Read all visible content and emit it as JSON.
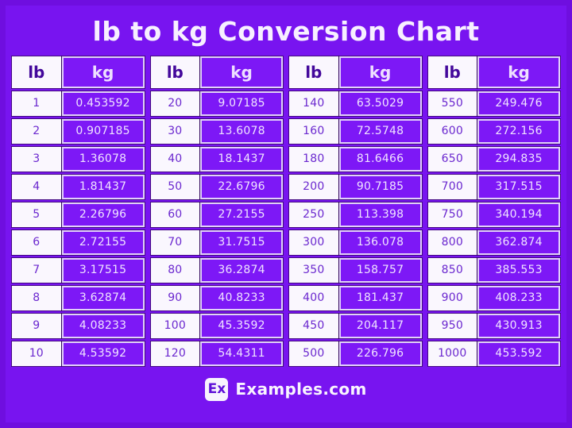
{
  "title": "lb to kg Conversion Chart",
  "footer": {
    "logo_text": "Ex",
    "brand_text": "Examples.com"
  },
  "colors": {
    "background": "#7814F0",
    "frame_border": "#6F0EDF",
    "kg_cell_background": "#7D18F6",
    "lb_cell_background": "#FAF7FE",
    "cell_light_border": "#E2D0FB",
    "title_text": "#F7F0FF",
    "lb_text": "#6B28CF",
    "kg_text": "#F0E4FF"
  },
  "chart_data": {
    "type": "table",
    "title": "lb to kg Conversion Chart",
    "columns": [
      "lb",
      "kg"
    ],
    "groups": [
      {
        "rows": [
          [
            "1",
            "0.453592"
          ],
          [
            "2",
            "0.907185"
          ],
          [
            "3",
            "1.36078"
          ],
          [
            "4",
            "1.81437"
          ],
          [
            "5",
            "2.26796"
          ],
          [
            "6",
            "2.72155"
          ],
          [
            "7",
            "3.17515"
          ],
          [
            "8",
            "3.62874"
          ],
          [
            "9",
            "4.08233"
          ],
          [
            "10",
            "4.53592"
          ]
        ]
      },
      {
        "rows": [
          [
            "20",
            "9.07185"
          ],
          [
            "30",
            "13.6078"
          ],
          [
            "40",
            "18.1437"
          ],
          [
            "50",
            "22.6796"
          ],
          [
            "60",
            "27.2155"
          ],
          [
            "70",
            "31.7515"
          ],
          [
            "80",
            "36.2874"
          ],
          [
            "90",
            "40.8233"
          ],
          [
            "100",
            "45.3592"
          ],
          [
            "120",
            "54.4311"
          ]
        ]
      },
      {
        "rows": [
          [
            "140",
            "63.5029"
          ],
          [
            "160",
            "72.5748"
          ],
          [
            "180",
            "81.6466"
          ],
          [
            "200",
            "90.7185"
          ],
          [
            "250",
            "113.398"
          ],
          [
            "300",
            "136.078"
          ],
          [
            "350",
            "158.757"
          ],
          [
            "400",
            "181.437"
          ],
          [
            "450",
            "204.117"
          ],
          [
            "500",
            "226.796"
          ]
        ]
      },
      {
        "rows": [
          [
            "550",
            "249.476"
          ],
          [
            "600",
            "272.156"
          ],
          [
            "650",
            "294.835"
          ],
          [
            "700",
            "317.515"
          ],
          [
            "750",
            "340.194"
          ],
          [
            "800",
            "362.874"
          ],
          [
            "850",
            "385.553"
          ],
          [
            "900",
            "408.233"
          ],
          [
            "950",
            "430.913"
          ],
          [
            "1000",
            "453.592"
          ]
        ]
      }
    ]
  }
}
